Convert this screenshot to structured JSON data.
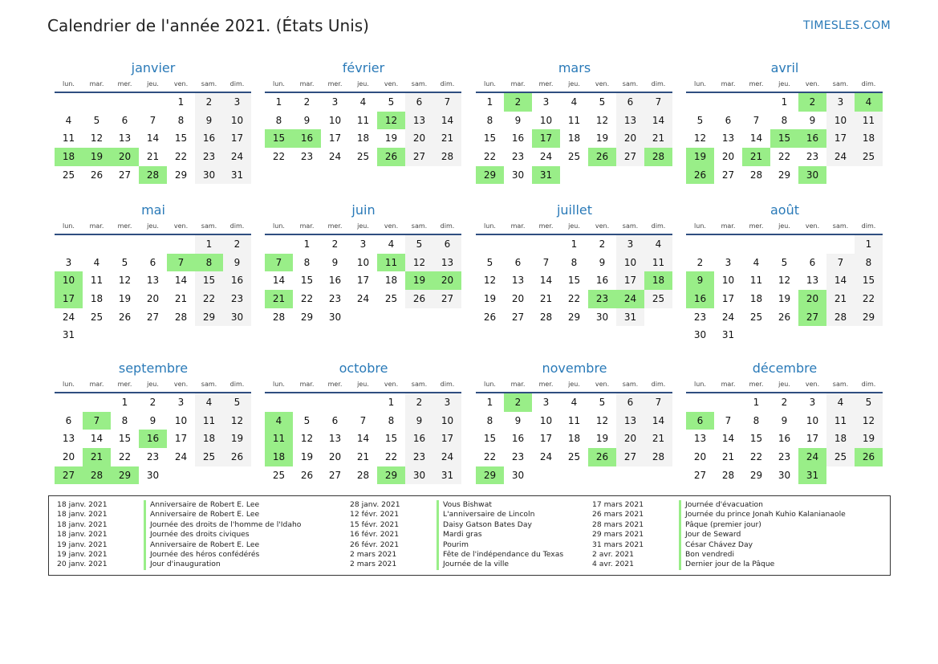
{
  "header": {
    "title": "Calendrier de l'année 2021. (États Unis)",
    "brand": "TIMESLES.COM"
  },
  "weekdays": [
    "lun.",
    "mar.",
    "mer.",
    "jeu.",
    "ven.",
    "sam.",
    "dim."
  ],
  "months": [
    {
      "name": "janvier",
      "offset": 4,
      "days": 31,
      "holidays": [
        18,
        19,
        20,
        28
      ]
    },
    {
      "name": "février",
      "offset": 0,
      "days": 28,
      "holidays": [
        12,
        15,
        16,
        26
      ]
    },
    {
      "name": "mars",
      "offset": 0,
      "days": 31,
      "holidays": [
        2,
        17,
        26,
        28,
        29,
        31
      ]
    },
    {
      "name": "avril",
      "offset": 3,
      "days": 30,
      "holidays": [
        2,
        4,
        15,
        16,
        19,
        21,
        26,
        30
      ]
    },
    {
      "name": "mai",
      "offset": 5,
      "days": 31,
      "holidays": [
        7,
        8,
        10,
        17
      ]
    },
    {
      "name": "juin",
      "offset": 1,
      "days": 30,
      "holidays": [
        7,
        11,
        19,
        20,
        21
      ]
    },
    {
      "name": "juillet",
      "offset": 3,
      "days": 31,
      "holidays": [
        18,
        23,
        24
      ]
    },
    {
      "name": "août",
      "offset": 6,
      "days": 31,
      "holidays": [
        9,
        16,
        20,
        27
      ]
    },
    {
      "name": "septembre",
      "offset": 2,
      "days": 30,
      "holidays": [
        7,
        16,
        21,
        27,
        28,
        29
      ]
    },
    {
      "name": "octobre",
      "offset": 4,
      "days": 31,
      "holidays": [
        4,
        11,
        18,
        29
      ]
    },
    {
      "name": "novembre",
      "offset": 0,
      "days": 30,
      "holidays": [
        2,
        26,
        29
      ]
    },
    {
      "name": "décembre",
      "offset": 2,
      "days": 31,
      "holidays": [
        6,
        24,
        26,
        31
      ]
    }
  ],
  "legend": [
    [
      {
        "date": "18 janv. 2021",
        "name": "Anniversaire de Robert E. Lee"
      },
      {
        "date": "18 janv. 2021",
        "name": "Anniversaire de Robert E. Lee"
      },
      {
        "date": "18 janv. 2021",
        "name": "Journée des droits de l'homme de l'Idaho"
      },
      {
        "date": "18 janv. 2021",
        "name": "Journée des droits civiques"
      },
      {
        "date": "19 janv. 2021",
        "name": "Anniversaire de Robert E. Lee"
      },
      {
        "date": "19 janv. 2021",
        "name": "Journée des héros confédérés"
      },
      {
        "date": "20 janv. 2021",
        "name": "Jour d'inauguration"
      }
    ],
    [
      {
        "date": "28 janv. 2021",
        "name": "Vous Bishwat"
      },
      {
        "date": "12 févr. 2021",
        "name": "L'anniversaire de Lincoln"
      },
      {
        "date": "15 févr. 2021",
        "name": "Daisy Gatson Bates Day"
      },
      {
        "date": "16 févr. 2021",
        "name": "Mardi gras"
      },
      {
        "date": "26 févr. 2021",
        "name": "Pourim"
      },
      {
        "date": "2 mars 2021",
        "name": "Fête de l'indépendance du Texas"
      },
      {
        "date": "2 mars 2021",
        "name": "Journée de la ville"
      }
    ],
    [
      {
        "date": "17 mars 2021",
        "name": "Journée d'évacuation"
      },
      {
        "date": "26 mars 2021",
        "name": "Journée du prince Jonah Kuhio Kalanianaole"
      },
      {
        "date": "28 mars 2021",
        "name": "Pâque (premier jour)"
      },
      {
        "date": "29 mars 2021",
        "name": "Jour de Seward"
      },
      {
        "date": "31 mars 2021",
        "name": "César Chávez Day"
      },
      {
        "date": "2 avr. 2021",
        "name": "Bon vendredi"
      },
      {
        "date": "4 avr. 2021",
        "name": "Dernier jour de la Pâque"
      }
    ]
  ],
  "colors": {
    "accent": "#2a7ab8",
    "holiday": "#99ee88",
    "weekend": "#f3f3f3",
    "rule": "#2f4e80"
  }
}
